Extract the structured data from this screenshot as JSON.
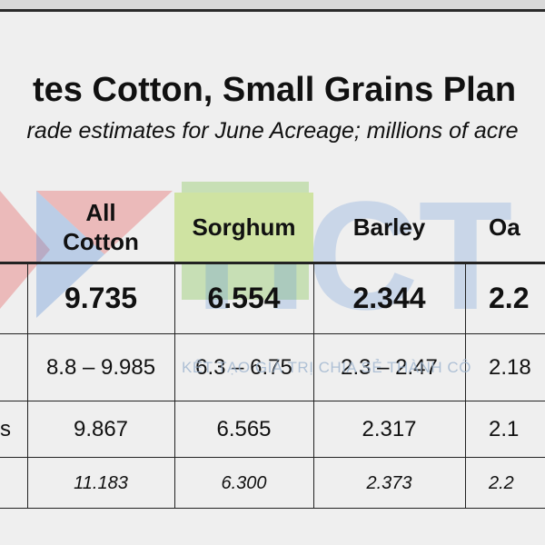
{
  "title": "tes Cotton, Small Grains Plan",
  "subtitle": "rade estimates for June Acreage; millions of acre",
  "watermark": {
    "letters": "HCT",
    "tagline": "KẾT TẠO GIÁ TRỊ CHIA SẺ THÀNH CÔ"
  },
  "table": {
    "columns": [
      {
        "label_line1": "All",
        "label_line2": "Cotton"
      },
      {
        "label_line1": "Sorghum",
        "label_line2": ""
      },
      {
        "label_line1": "Barley",
        "label_line2": ""
      },
      {
        "label_line1": "Oa",
        "label_line2": ""
      }
    ],
    "rows": [
      {
        "label": "",
        "values": [
          "9.735",
          "6.554",
          "2.344",
          "2.2"
        ]
      },
      {
        "label": "",
        "values": [
          "8.8 – 9.985",
          "6.3 – 6.75",
          "2.3 – 2.47",
          "2.18"
        ]
      },
      {
        "label": "s",
        "values": [
          "9.867",
          "6.565",
          "2.317",
          "2.1"
        ]
      },
      {
        "label": "",
        "values": [
          "11.183",
          "6.300",
          "2.373",
          "2.2"
        ]
      }
    ]
  },
  "colors": {
    "background": "#efefef",
    "sorghum_header": "#cfe3a2",
    "watermark_blue": "#5b8fd6",
    "watermark_red": "#e45a5a"
  }
}
